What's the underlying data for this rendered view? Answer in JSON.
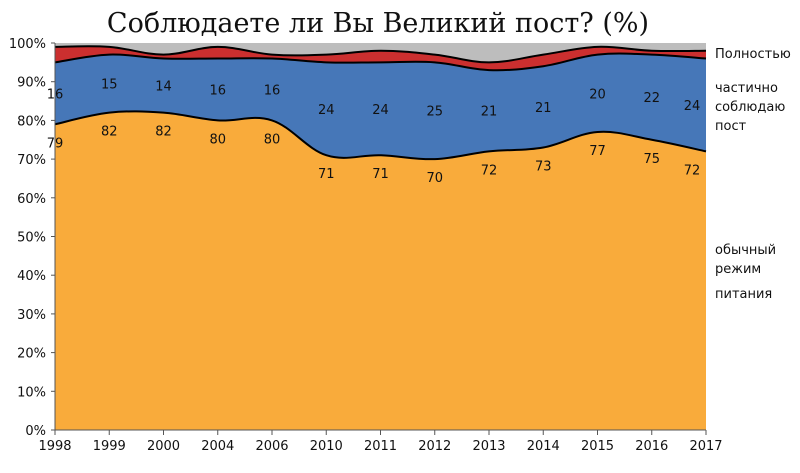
{
  "chart_data": {
    "type": "area",
    "title": "Соблюдаете ли Вы Великий пост? (%)",
    "x": [
      "1998",
      "1999",
      "2000",
      "2004",
      "2006",
      "2010",
      "2011",
      "2012",
      "2013",
      "2014",
      "2015",
      "2016",
      "2017"
    ],
    "ylim": [
      0,
      100
    ],
    "yticks": [
      "0%",
      "10%",
      "20%",
      "30%",
      "40%",
      "50%",
      "60%",
      "70%",
      "80%",
      "90%",
      "100%"
    ],
    "grid": false,
    "legend_position": "right",
    "stacked": true,
    "series": [
      {
        "name": "обычный режим питания",
        "legend_lines": [
          "обычный",
          "режим",
          "питания"
        ],
        "color": "#F9AB3B",
        "values": [
          79,
          82,
          82,
          80,
          80,
          71,
          71,
          70,
          72,
          73,
          77,
          75,
          72
        ]
      },
      {
        "name": "частично соблюдаю пост",
        "legend_lines": [
          "частично",
          "соблюдаю",
          "пост"
        ],
        "color": "#4677B8",
        "values": [
          16,
          15,
          14,
          16,
          16,
          24,
          24,
          25,
          21,
          21,
          20,
          22,
          24
        ]
      },
      {
        "name": "Полностью",
        "legend_lines": [
          "Полностью"
        ],
        "color": "#CB2F2F",
        "values": [
          4,
          2,
          1,
          3,
          1,
          2,
          3,
          2,
          2,
          3,
          2,
          1,
          2
        ]
      },
      {
        "name": "",
        "legend_lines": [],
        "color": "#BDBDBD",
        "values": [
          1,
          1,
          3,
          1,
          3,
          3,
          2,
          3,
          5,
          3,
          1,
          2,
          2
        ]
      }
    ],
    "data_labels": [
      {
        "series": 0,
        "values": [
          "79",
          "82",
          "82",
          "80",
          "80",
          "71",
          "71",
          "70",
          "72",
          "73",
          "77",
          "75",
          "72"
        ]
      },
      {
        "series": 1,
        "values": [
          "16",
          "15",
          "14",
          "16",
          "16",
          "24",
          "24",
          "25",
          "21",
          "21",
          "20",
          "22",
          "24"
        ]
      }
    ]
  }
}
